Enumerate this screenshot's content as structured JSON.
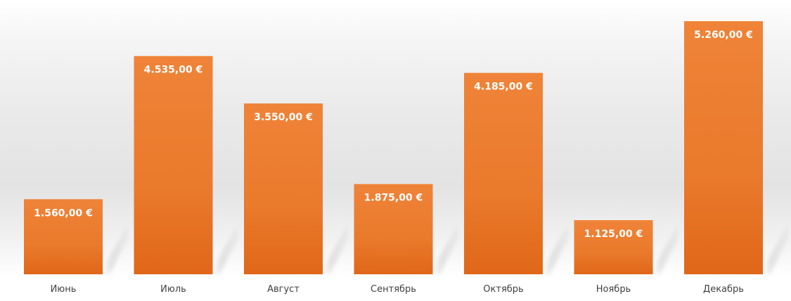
{
  "chart_data": {
    "type": "bar",
    "categories": [
      "Июнь",
      "Июль",
      "Август",
      "Сентябрь",
      "Октябрь",
      "Ноябрь",
      "Декабрь"
    ],
    "values": [
      1560,
      4535,
      3550,
      1875,
      4185,
      1125,
      5260
    ],
    "value_labels": [
      "1.560,00 €",
      "4.535,00 €",
      "3.550,00 €",
      "1.875,00 €",
      "4.185,00 €",
      "1.125,00 €",
      "5.260,00 €"
    ],
    "title": "",
    "xlabel": "",
    "ylabel": "",
    "ylim": [
      0,
      5700
    ],
    "grid": false,
    "legend": "none",
    "bar_color": "#ED7D31",
    "bar_color_dark": "#E06A1A",
    "label_color": "#FFFFFF",
    "category_label_color": "#404040"
  }
}
